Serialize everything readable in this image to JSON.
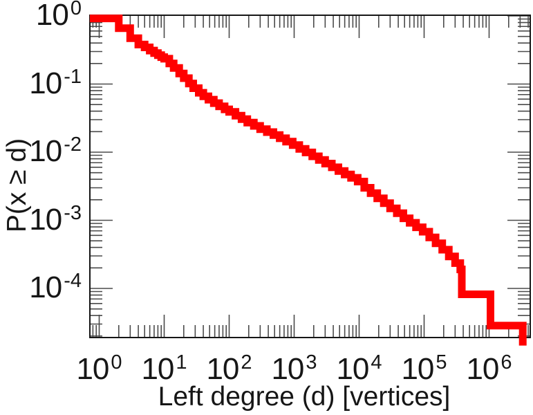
{
  "chart_data": {
    "type": "line",
    "subtype": "step-ccdf",
    "scale": "log-log",
    "title": "",
    "xlabel": "Left degree (d) [vertices]",
    "ylabel": "P(x ≥ d)",
    "tick_base": "10",
    "x_tick_exponents": [
      0,
      1,
      2,
      3,
      4,
      5,
      6
    ],
    "y_tick_exponents": [
      0,
      -1,
      -2,
      -3,
      -4
    ],
    "xlim": [
      0.72,
      4600000
    ],
    "ylim": [
      1.9e-05,
      1.0
    ],
    "grid": false,
    "legend_position": "none",
    "series": [
      {
        "name": "left-degree-ccdf",
        "color": "#ff0000",
        "line_width": 11,
        "points": [
          [
            1,
            0.92
          ],
          [
            2,
            0.66
          ],
          [
            3,
            0.47
          ],
          [
            4,
            0.38
          ],
          [
            5,
            0.345
          ],
          [
            6,
            0.31
          ],
          [
            7,
            0.285
          ],
          [
            8,
            0.265
          ],
          [
            9,
            0.248
          ],
          [
            10,
            0.235
          ],
          [
            12,
            0.2
          ],
          [
            14,
            0.172
          ],
          [
            17,
            0.143
          ],
          [
            20,
            0.122
          ],
          [
            24,
            0.102
          ],
          [
            28,
            0.087
          ],
          [
            34,
            0.0745
          ],
          [
            40,
            0.066
          ],
          [
            48,
            0.059
          ],
          [
            58,
            0.0525
          ],
          [
            70,
            0.047
          ],
          [
            85,
            0.0425
          ],
          [
            100,
            0.039
          ],
          [
            125,
            0.0343
          ],
          [
            155,
            0.0305
          ],
          [
            190,
            0.0272
          ],
          [
            240,
            0.0243
          ],
          [
            300,
            0.0218
          ],
          [
            380,
            0.0197
          ],
          [
            480,
            0.0178
          ],
          [
            600,
            0.016
          ],
          [
            750,
            0.0143
          ],
          [
            950,
            0.0127
          ],
          [
            1200,
            0.0112
          ],
          [
            1500,
            0.0099
          ],
          [
            1900,
            0.0087
          ],
          [
            2400,
            0.0077
          ],
          [
            3000,
            0.0068
          ],
          [
            3800,
            0.006
          ],
          [
            4800,
            0.0053
          ],
          [
            6000,
            0.0047
          ],
          [
            7500,
            0.0042
          ],
          [
            9500,
            0.0037
          ],
          [
            12000,
            0.003
          ],
          [
            15000,
            0.0025
          ],
          [
            19000,
            0.0021
          ],
          [
            24000,
            0.00178
          ],
          [
            30000,
            0.0015
          ],
          [
            38000,
            0.00127
          ],
          [
            48000,
            0.00107
          ],
          [
            60000,
            0.00092
          ],
          [
            75000,
            0.00079
          ],
          [
            95000,
            0.00068
          ],
          [
            120000,
            0.00056
          ],
          [
            150000,
            0.00046
          ],
          [
            190000,
            0.00037
          ],
          [
            240000,
            0.000295
          ],
          [
            300000,
            0.000235
          ],
          [
            360000,
            0.00019
          ],
          [
            380000,
            8.2e-05
          ],
          [
            1050000,
            2.85e-05
          ],
          [
            3300000,
            1.45e-05
          ]
        ]
      }
    ]
  }
}
